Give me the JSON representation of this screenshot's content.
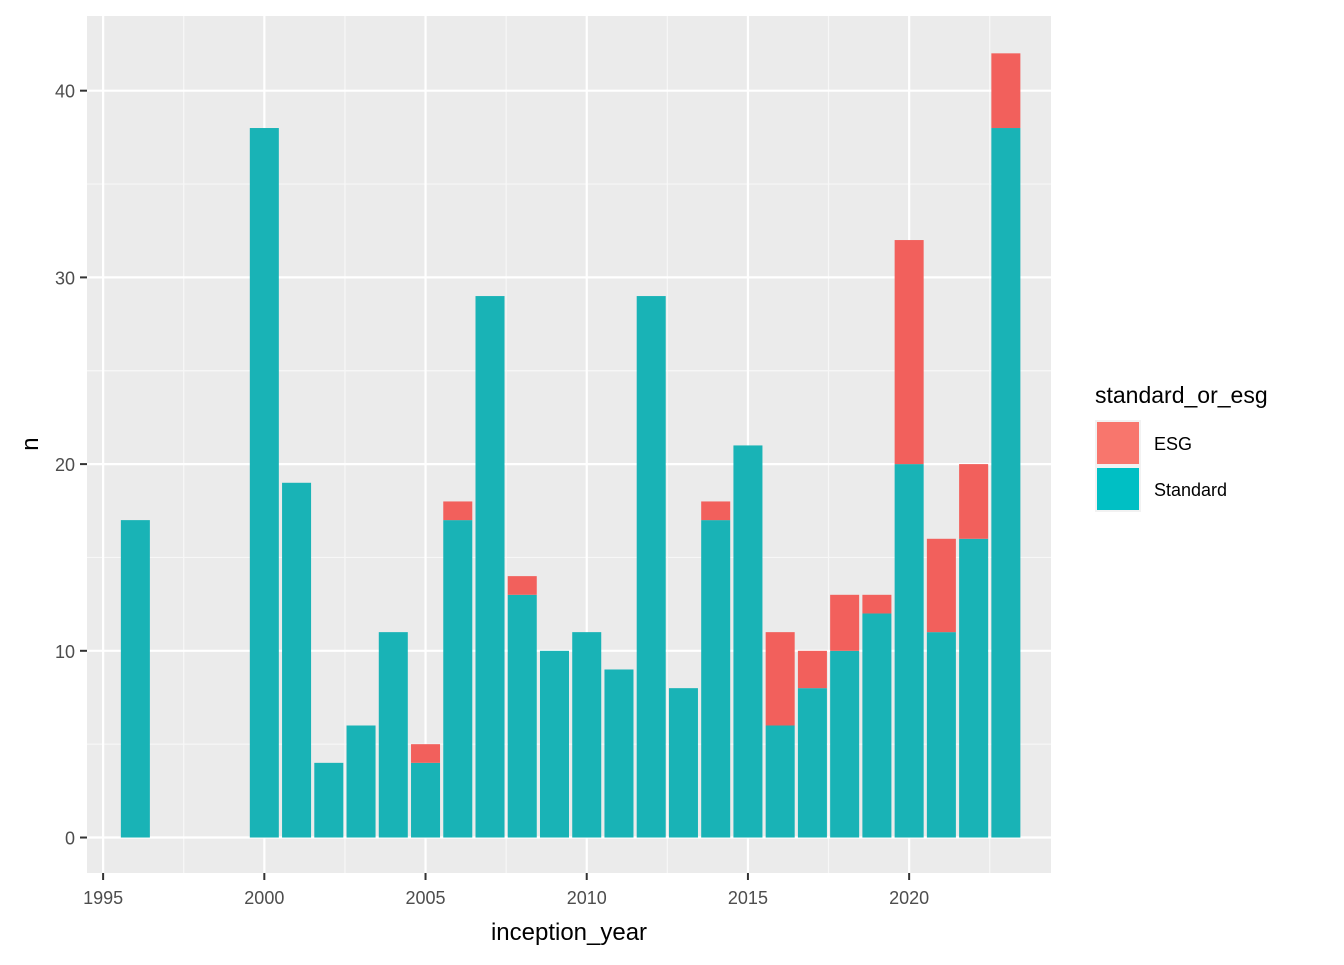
{
  "chart_data": {
    "type": "bar",
    "stacked": true,
    "title": "",
    "xlabel": "inception_year",
    "ylabel": "n",
    "xlim": [
      1994.5,
      2024.4
    ],
    "ylim": [
      -1.9,
      44
    ],
    "x_ticks": [
      1995,
      2000,
      2005,
      2010,
      2015,
      2020
    ],
    "y_ticks": [
      0,
      10,
      20,
      30,
      40
    ],
    "grid": true,
    "legend": {
      "title": "standard_or_esg",
      "position": "right",
      "entries": [
        {
          "name": "ESG",
          "color": "#F8766D"
        },
        {
          "name": "Standard",
          "color": "#00BFC4"
        }
      ]
    },
    "x": [
      1996,
      2000,
      2001,
      2002,
      2003,
      2004,
      2005,
      2006,
      2007,
      2008,
      2009,
      2010,
      2011,
      2012,
      2013,
      2014,
      2015,
      2016,
      2017,
      2018,
      2019,
      2020,
      2021,
      2022,
      2023
    ],
    "series": [
      {
        "name": "Standard",
        "color": "#19B3B6",
        "values": [
          17,
          38,
          19,
          4,
          6,
          11,
          4,
          17,
          29,
          13,
          10,
          11,
          9,
          29,
          8,
          17,
          21,
          6,
          8,
          10,
          12,
          20,
          11,
          16,
          38
        ]
      },
      {
        "name": "ESG",
        "color": "#F2605C",
        "values": [
          0,
          0,
          0,
          0,
          0,
          0,
          1,
          1,
          0,
          1,
          0,
          0,
          0,
          0,
          0,
          1,
          0,
          5,
          2,
          3,
          1,
          12,
          5,
          4,
          4
        ]
      }
    ]
  }
}
